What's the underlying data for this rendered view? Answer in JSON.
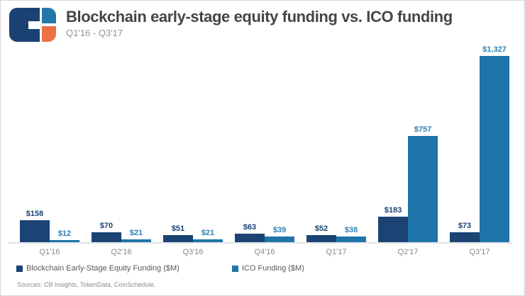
{
  "header": {
    "title": "Blockchain early-stage equity funding vs. ICO funding",
    "subtitle": "Q1'16 - Q3'17",
    "logo": {
      "name": "cb-insights-logo",
      "navy": "#1b4172",
      "blue": "#2478a9",
      "orange": "#ee6f42"
    }
  },
  "chart_data": {
    "type": "bar",
    "title": "Blockchain early-stage equity funding vs. ICO funding",
    "subtitle": "Q1'16 - Q3'17",
    "categories": [
      "Q1'16",
      "Q2'16",
      "Q3'16",
      "Q4'16",
      "Q1'17",
      "Q2'17",
      "Q3'17"
    ],
    "series": [
      {
        "name": "Blockchain Early-Stage Equity Funding ($M)",
        "color": "#1b4374",
        "label_color": "#1b4374",
        "values": [
          158,
          70,
          51,
          63,
          52,
          183,
          73
        ],
        "labels": [
          "$158",
          "$70",
          "$51",
          "$63",
          "$52",
          "$183",
          "$73"
        ]
      },
      {
        "name": "ICO Funding ($M)",
        "color": "#1d75a9",
        "label_color": "#2b80b2",
        "values": [
          12,
          21,
          21,
          39,
          38,
          757,
          1327
        ],
        "labels": [
          "$12",
          "$21",
          "$21",
          "$39",
          "$38",
          "$757",
          "$1,327"
        ]
      }
    ],
    "ylim": [
      0,
      1327
    ],
    "xlabel": "",
    "ylabel": "",
    "grid": false,
    "legend_position": "bottom",
    "value_labels": true
  },
  "footer": {
    "sources": "Sources: CB Insights, TokenData, CoinSchedule."
  }
}
